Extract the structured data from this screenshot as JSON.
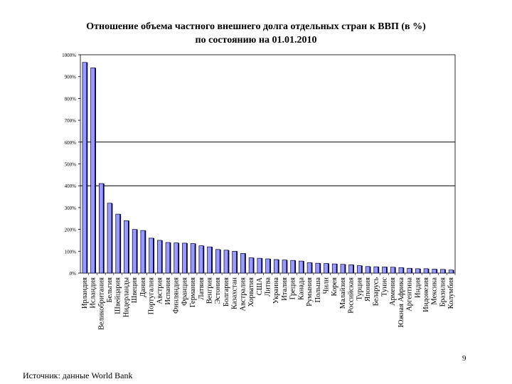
{
  "slide": {
    "title_line1": "Отношение объема частного внешнего долга отдельных стран к ВВП (в %)",
    "title_line2": "по состоянию на 01.01.2010",
    "page_number": "9",
    "source": "Источник: данные World Bank"
  },
  "chart_data": {
    "type": "bar",
    "title": "Отношение объема частного внешнего долга отдельных стран к ВВП (в %) по состоянию на 01.01.2010",
    "xlabel": "",
    "ylabel": "",
    "ylim": [
      0,
      1000
    ],
    "yticks": [
      "0%",
      "100%",
      "200%",
      "300%",
      "400%",
      "500%",
      "600%",
      "700%",
      "800%",
      "900%",
      "1000%"
    ],
    "reference_lines": [
      400,
      600
    ],
    "grid": false,
    "bar_color": "#9999ff",
    "bar_edge_color": "#000033",
    "categories": [
      "Ирландия",
      "Исландия",
      "Великобритания",
      "Бельгия",
      "Швейцария",
      "Нидерланды",
      "Швеция",
      "Дания",
      "Португалия",
      "Австрия",
      "Испания",
      "Финляндия",
      "Франция",
      "Германия",
      "Латвия",
      "Венгрия",
      "Эстония",
      "Болгария",
      "Казахстан",
      "Австралия",
      "Хорватия",
      "США",
      "Литва",
      "Украина",
      "Италия",
      "Греция",
      "Канада",
      "Румыния",
      "Польша",
      "Чили",
      "Корея",
      "Малайзия",
      "Российская Федерация",
      "Турция",
      "Япония",
      "Беларусь",
      "Тунис",
      "Армения",
      "Южная Африка",
      "Аргентина",
      "Индия",
      "Индонезия",
      "Мексика",
      "Бразилия",
      "Колумбия"
    ],
    "labels": [
      "Ирландия",
      "Исландия",
      "Великобритания",
      "Бельгия",
      "Швейцария",
      "Нидерланды",
      "Швеция",
      "Дания",
      "Португалия",
      "Австрия",
      "Испания",
      "Финляндия",
      "Франция",
      "Германия",
      "Латвия",
      "Венгрия",
      "Эстония",
      "Болгария",
      "Казахстан",
      "Австралия",
      "Хорватия",
      "США",
      "Литва",
      "Украина",
      "Италия",
      "Греция",
      "Канада",
      "Румыния",
      "Польша",
      "Чили",
      "Корея",
      "Малайзия",
      "Российская",
      "Турция",
      "Япония",
      "Беларусь",
      "Тунис",
      "Армения",
      "Южная Африка",
      "Аргентина",
      "Индия",
      "Индонезия",
      "Мексика",
      "Бразилия",
      "Колумбия"
    ],
    "values": [
      965,
      940,
      410,
      320,
      270,
      240,
      200,
      195,
      160,
      150,
      140,
      138,
      137,
      135,
      125,
      120,
      108,
      105,
      100,
      90,
      70,
      68,
      65,
      62,
      60,
      58,
      55,
      48,
      45,
      44,
      42,
      40,
      38,
      34,
      30,
      29,
      28,
      27,
      25,
      22,
      20,
      20,
      18,
      17,
      14
    ]
  }
}
